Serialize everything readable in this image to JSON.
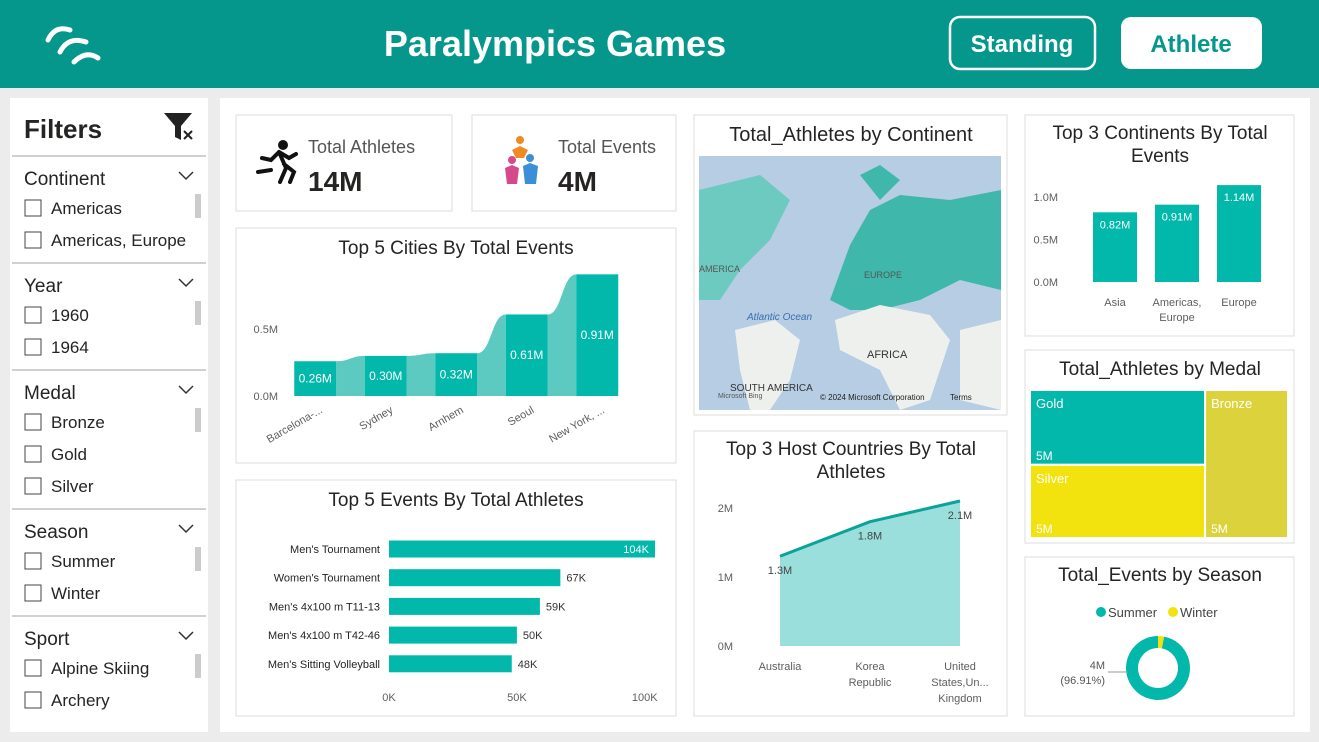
{
  "header": {
    "title": "Paralympics Games",
    "buttons": [
      "Standing",
      "Athlete"
    ]
  },
  "filters": {
    "title": "Filters",
    "groups": [
      {
        "name": "Continent",
        "options": [
          "Americas",
          "Americas, Europe"
        ]
      },
      {
        "name": "Year",
        "options": [
          "1960",
          "1964"
        ]
      },
      {
        "name": "Medal",
        "options": [
          "Bronze",
          "Gold",
          "Silver"
        ]
      },
      {
        "name": "Season",
        "options": [
          "Summer",
          "Winter"
        ]
      },
      {
        "name": "Sport",
        "options": [
          "Alpine Skiing",
          "Archery"
        ]
      }
    ]
  },
  "kpis": [
    {
      "label": "Total Athletes",
      "value": "14M"
    },
    {
      "label": "Total Events",
      "value": "4M"
    }
  ],
  "map": {
    "title": "Total_Athletes by Continent",
    "labels": [
      "AMERICA",
      "EUROPE",
      "Atlantic Ocean",
      "AFRICA",
      "SOUTH AMERICA",
      "Microsoft Bing",
      "© 2024 Microsoft Corporation",
      "Terms"
    ]
  },
  "chart_data": [
    {
      "type": "ribbon",
      "title": "Top 5 Cities By Total Events",
      "categories": [
        "Barcelona-...",
        "Sydney",
        "Arnhem",
        "Seoul",
        "New York, ..."
      ],
      "values": [
        260000,
        300000,
        320000,
        610000,
        910000
      ],
      "value_labels": [
        "0.26M",
        "0.30M",
        "0.32M",
        "0.61M",
        "0.91M"
      ],
      "color": "#01b8aa",
      "ribbon_color": "#5ccac1",
      "ylim": [
        0,
        950000
      ],
      "yticks": [
        {
          "value": 0,
          "label": "0.0M"
        },
        {
          "value": 500000,
          "label": "0.5M"
        }
      ]
    },
    {
      "type": "hbar",
      "title": "Top 5 Events By Total Athletes",
      "categories": [
        "Men's Tournament",
        "Women's Tournament",
        "Men's 4x100 m T11-13",
        "Men's 4x100 m T42-46",
        "Men's Sitting Volleyball"
      ],
      "values": [
        104000,
        67000,
        59000,
        50000,
        48000
      ],
      "value_labels": [
        "104K",
        "67K",
        "59K",
        "50K",
        "48K"
      ],
      "color": "#01b8aa",
      "xlim": [
        0,
        104000
      ],
      "xticks": [
        {
          "value": 0,
          "label": "0K"
        },
        {
          "value": 50000,
          "label": "50K"
        },
        {
          "value": 100000,
          "label": "100K"
        }
      ]
    },
    {
      "type": "area",
      "title": "Top 3 Host Countries By Total Athletes",
      "categories": [
        "Australia",
        "Korea Republic",
        "United States,Un... Kingdom"
      ],
      "values": [
        1300000,
        1800000,
        2100000
      ],
      "value_labels": [
        "1.3M",
        "1.8M",
        "2.1M"
      ],
      "color": "#0aa39a",
      "fill": "#9adfdc",
      "ylim": [
        0,
        2100000
      ],
      "yticks": [
        {
          "value": 0,
          "label": "0M"
        },
        {
          "value": 1000000,
          "label": "1M"
        },
        {
          "value": 2000000,
          "label": "2M"
        }
      ]
    },
    {
      "type": "bar",
      "title": "Top 3 Continents By Total Events",
      "categories": [
        "Asia",
        "Americas, Europe",
        "Europe"
      ],
      "values": [
        820000,
        910000,
        1140000
      ],
      "value_labels": [
        "0.82M",
        "0.91M",
        "1.14M"
      ],
      "color": "#01b8aa",
      "ylim": [
        0,
        1200000
      ],
      "yticks": [
        {
          "value": 0,
          "label": "0.0M"
        },
        {
          "value": 500000,
          "label": "0.5M"
        },
        {
          "value": 1000000,
          "label": "1.0M"
        }
      ]
    },
    {
      "type": "treemap",
      "title": "Total_Athletes by Medal",
      "categories": [
        "Gold",
        "Silver",
        "Bronze"
      ],
      "values": [
        4800000,
        4700000,
        4500000
      ],
      "value_labels": [
        "5M",
        "5M",
        "5M"
      ],
      "colors": [
        "#01b8aa",
        "#f2e30f",
        "#dcd33c"
      ]
    },
    {
      "type": "donut",
      "title": "Total_Events by Season",
      "categories": [
        "Summer",
        "Winter"
      ],
      "values": [
        3876400,
        123600
      ],
      "value_labels": [
        "4M (96.91%)",
        null
      ],
      "colors": [
        "#01b8aa",
        "#f2e30f"
      ]
    }
  ]
}
